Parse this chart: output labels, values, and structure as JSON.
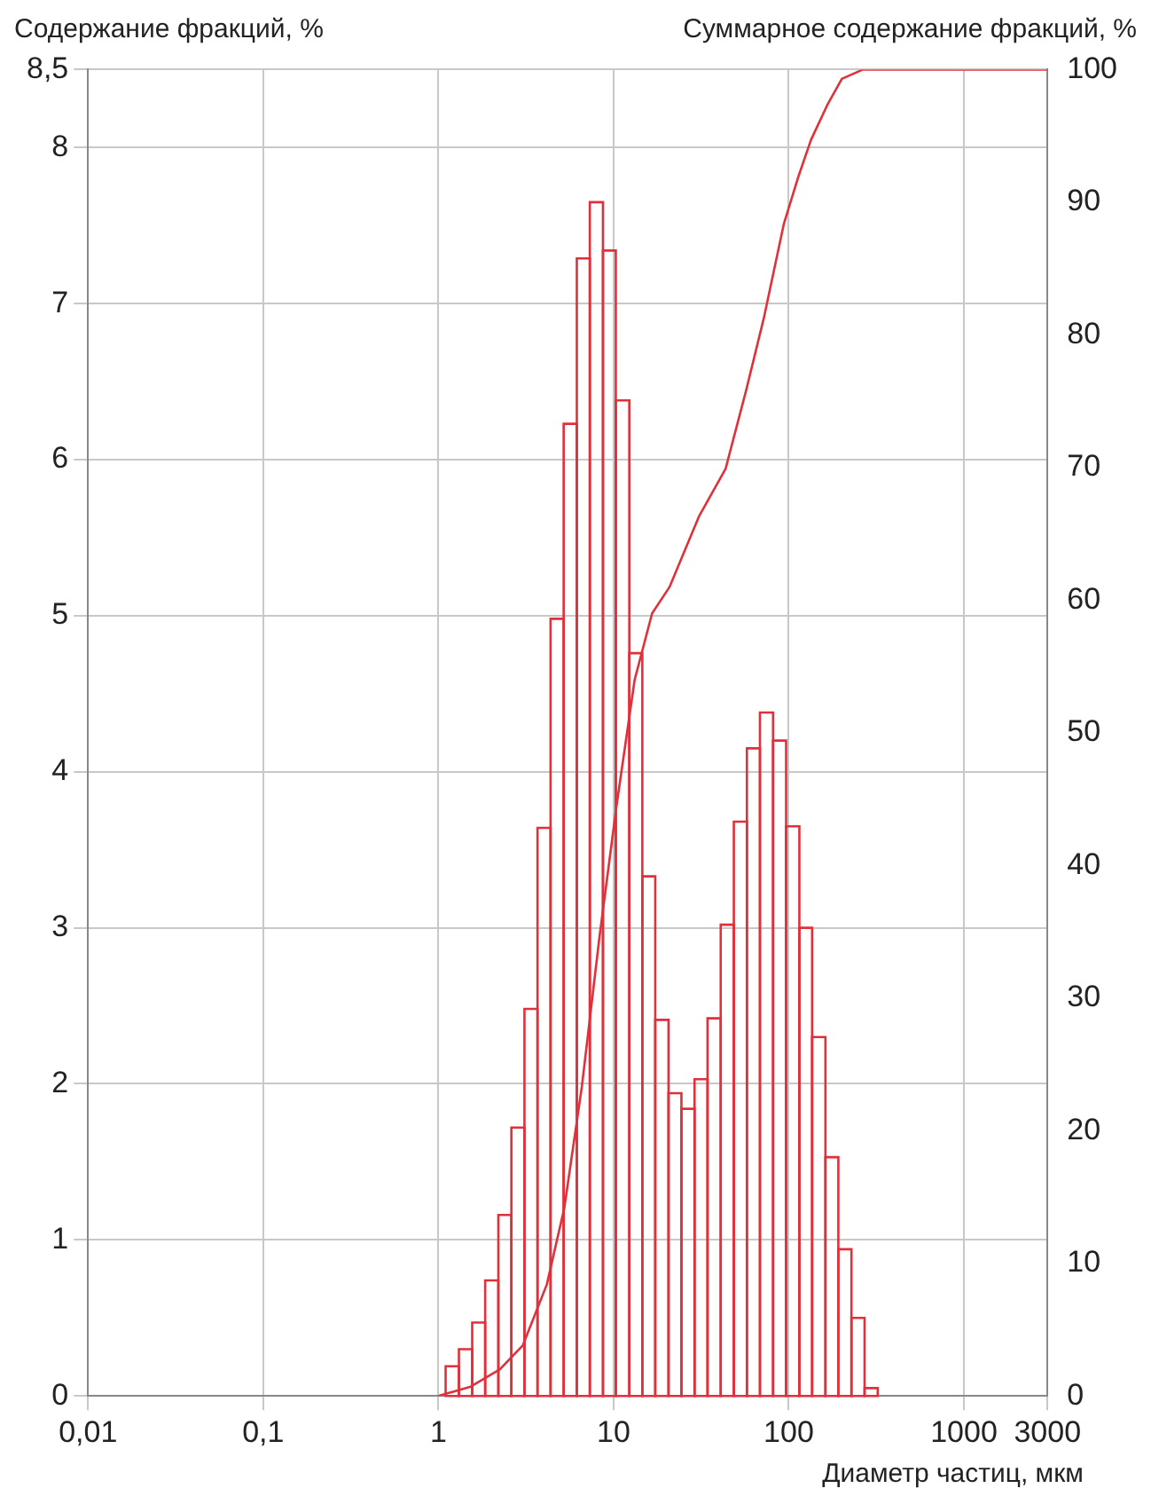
{
  "chart_data": {
    "type": "histogram",
    "ylabel": "Содержание фракций, %",
    "y2label": "Суммарное содержание фракций, %",
    "xlabel": "Диаметр частиц, мкм",
    "log": "x",
    "grid": true,
    "legend": false,
    "xlim": [
      0.01,
      3000
    ],
    "xticks": [
      {
        "value": 0.01,
        "label": "0,01"
      },
      {
        "value": 0.1,
        "label": "0,1"
      },
      1,
      10,
      100,
      1000,
      3000
    ],
    "ylim": [
      0,
      8.5
    ],
    "yticks": [
      0,
      1,
      2,
      3,
      4,
      5,
      6,
      7,
      8,
      {
        "value": 8.5,
        "label": "8,5"
      }
    ],
    "y2lim": [
      0,
      100
    ],
    "y2ticks": [
      0,
      10,
      20,
      30,
      40,
      50,
      60,
      70,
      80,
      90,
      100
    ],
    "series": [
      {
        "type": "histogram",
        "color": "#e0303a",
        "bins": [
          1.1,
          1.31,
          1.56,
          1.85,
          2.2,
          2.61,
          3.1,
          3.68,
          4.37,
          5.19,
          6.17,
          7.32,
          8.7,
          10.3,
          12.3,
          14.6,
          17.3,
          20.6,
          24.4,
          29,
          34.4,
          40.9,
          48.6,
          57.7,
          68.5,
          81.4,
          96.6,
          115,
          136,
          162,
          192,
          228,
          271,
          322
        ],
        "values": [
          0.19,
          0.3,
          0.47,
          0.74,
          1.16,
          1.72,
          2.48,
          3.64,
          4.98,
          6.23,
          7.29,
          7.65,
          7.34,
          6.38,
          4.76,
          3.33,
          2.41,
          1.94,
          1.84,
          2.03,
          2.42,
          3.02,
          3.68,
          4.15,
          4.38,
          4.2,
          3.65,
          3,
          2.3,
          1.53,
          0.94,
          0.5,
          0.05
        ]
      },
      {
        "type": "line",
        "axis": "y2",
        "color": "#e0303a",
        "x": [
          1,
          1.53,
          2.24,
          3.03,
          4.16,
          5.24,
          6.59,
          8.31,
          10.4,
          13.2,
          16.6,
          20.9,
          30.7,
          43.6,
          57.1,
          71.9,
          93.9,
          114,
          134,
          167,
          201,
          265,
          3000
        ],
        "values": [
          0,
          0.7,
          2,
          3.8,
          8.4,
          14.2,
          23.3,
          34.6,
          44.5,
          54,
          59,
          61,
          66.3,
          69.9,
          75.8,
          81.2,
          88.4,
          92,
          94.7,
          97.4,
          99.3,
          100,
          100
        ]
      }
    ]
  }
}
